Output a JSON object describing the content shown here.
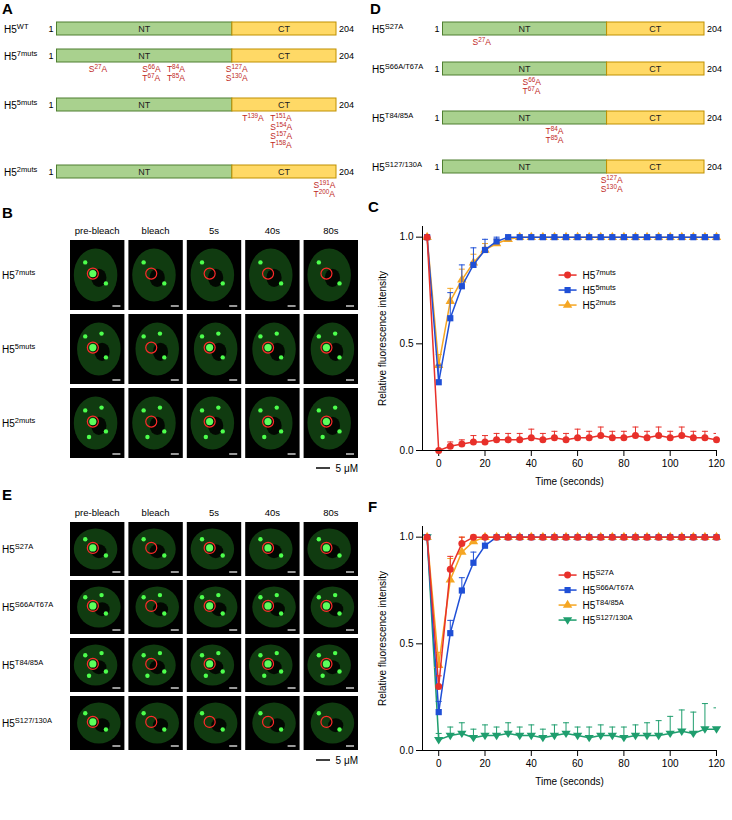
{
  "panels": {
    "A": {
      "label": "A",
      "start": 1,
      "end": 204,
      "domains": [
        {
          "name": "NT",
          "start": 1,
          "end": 128
        },
        {
          "name": "CT",
          "start": 129,
          "end": 204
        }
      ],
      "constructs": [
        {
          "name": "H5",
          "sup": "WT",
          "mutations": []
        },
        {
          "name": "H5",
          "sup": "7muts",
          "mutations": [
            [
              "S27A"
            ],
            [
              "S66A",
              "T67A"
            ],
            [
              "T84A",
              "T85A"
            ],
            [
              "S127A",
              "S130A"
            ]
          ]
        },
        {
          "name": "H5",
          "sup": "5muts",
          "mutations": [
            [
              "T139A"
            ],
            [
              "T151A",
              "S154A",
              "S157A",
              "T158A"
            ]
          ]
        },
        {
          "name": "H5",
          "sup": "2muts",
          "mutations": [
            [
              "S191A",
              "T200A"
            ]
          ]
        }
      ]
    },
    "D": {
      "label": "D",
      "start": 1,
      "end": 204,
      "domains": [
        {
          "name": "NT",
          "start": 1,
          "end": 128
        },
        {
          "name": "CT",
          "start": 129,
          "end": 204
        }
      ],
      "constructs": [
        {
          "name": "H5",
          "sup": "S27A",
          "mutations": [
            [
              "S27A"
            ]
          ]
        },
        {
          "name": "H5",
          "sup": "S66A/T67A",
          "mutations": [
            [
              "S66A",
              "T67A"
            ]
          ]
        },
        {
          "name": "H5",
          "sup": "T84/85A",
          "mutations": [
            [
              "T84A",
              "T85A"
            ]
          ]
        },
        {
          "name": "H5",
          "sup": "S127/130A",
          "mutations": [
            [
              "S127A",
              "S130A"
            ]
          ]
        }
      ]
    },
    "B": {
      "label": "B",
      "columns": [
        "pre-bleach",
        "bleach",
        "5s",
        "40s",
        "80s"
      ],
      "rows": [
        {
          "name": "H5",
          "sup": "7muts"
        },
        {
          "name": "H5",
          "sup": "5muts"
        },
        {
          "name": "H5",
          "sup": "2muts"
        }
      ],
      "scale_bar": "5 μM"
    },
    "E": {
      "label": "E",
      "columns": [
        "pre-bleach",
        "bleach",
        "5s",
        "40s",
        "80s"
      ],
      "rows": [
        {
          "name": "H5",
          "sup": "S27A"
        },
        {
          "name": "H5",
          "sup": "S66A/T67A"
        },
        {
          "name": "H5",
          "sup": "T84/85A"
        },
        {
          "name": "H5",
          "sup": "S127/130A"
        }
      ],
      "scale_bar": "5 μM"
    }
  },
  "chart_data": [
    {
      "panel": "C",
      "type": "line",
      "x_label": "Time (seconds)",
      "y_label": "Relative fluorescence intensity",
      "xlim": [
        -7,
        120
      ],
      "xticks": [
        0,
        20,
        40,
        60,
        80,
        100,
        120
      ],
      "ylim": [
        0,
        1.05
      ],
      "yticks": [
        {
          "value": 0,
          "label": "0.0"
        },
        {
          "value": 0.5,
          "label": "0.5"
        },
        {
          "value": 1,
          "label": "1.0"
        }
      ],
      "legend": "right",
      "x": [
        -5,
        0,
        5,
        10,
        15,
        20,
        25,
        30,
        35,
        40,
        45,
        50,
        55,
        60,
        65,
        70,
        75,
        80,
        85,
        90,
        95,
        100,
        105,
        110,
        115,
        120
      ],
      "series": [
        {
          "name": "H5",
          "sup": "7muts",
          "color": "#e8302a",
          "marker": "circle",
          "values": [
            1,
            0,
            0.02,
            0.03,
            0.04,
            0.04,
            0.05,
            0.05,
            0.05,
            0.06,
            0.05,
            0.06,
            0.05,
            0.06,
            0.06,
            0.07,
            0.06,
            0.06,
            0.07,
            0.06,
            0.07,
            0.06,
            0.07,
            0.06,
            0.06,
            0.05
          ],
          "errors": [
            0,
            0,
            0.02,
            0.02,
            0.03,
            0.03,
            0.03,
            0.03,
            0.03,
            0.04,
            0.03,
            0.03,
            0.03,
            0.04,
            0.03,
            0.04,
            0.03,
            0.03,
            0.04,
            0.03,
            0.04,
            0.03,
            0.04,
            0.03,
            0.03,
            0.03
          ]
        },
        {
          "name": "H5",
          "sup": "5muts",
          "color": "#1f4fd6",
          "marker": "square",
          "values": [
            1,
            0.32,
            0.62,
            0.77,
            0.87,
            0.94,
            0.98,
            1,
            1,
            1,
            1,
            1,
            1,
            1,
            1,
            1,
            1,
            1,
            1,
            1,
            1,
            1,
            1,
            1,
            1,
            1
          ],
          "errors": [
            0,
            0.08,
            0.12,
            0.1,
            0.08,
            0.05,
            0.02,
            0,
            0,
            0,
            0,
            0,
            0,
            0,
            0,
            0,
            0,
            0,
            0,
            0,
            0,
            0,
            0,
            0,
            0,
            0
          ]
        },
        {
          "name": "H5",
          "sup": "2muts",
          "color": "#f5a623",
          "marker": "triangle",
          "values": [
            1,
            0.4,
            0.7,
            0.8,
            0.88,
            0.94,
            0.97,
            0.99,
            1,
            1,
            1,
            1,
            1,
            1,
            1,
            1,
            1,
            1,
            1,
            1,
            1,
            1,
            1,
            1,
            1,
            1
          ],
          "errors": [
            0,
            0.05,
            0.06,
            0.05,
            0.04,
            0.03,
            0.02,
            0.01,
            0,
            0,
            0,
            0,
            0,
            0,
            0,
            0,
            0,
            0,
            0,
            0,
            0,
            0,
            0,
            0,
            0,
            0
          ]
        }
      ]
    },
    {
      "panel": "F",
      "type": "line",
      "x_label": "Time (seconds)",
      "y_label": "Relative fluorescence intensity",
      "xlim": [
        -7,
        120
      ],
      "xticks": [
        0,
        20,
        40,
        60,
        80,
        100,
        120
      ],
      "ylim": [
        0,
        1.05
      ],
      "yticks": [
        {
          "value": 0,
          "label": "0.0"
        },
        {
          "value": 0.5,
          "label": "0.5"
        },
        {
          "value": 1,
          "label": "1.0"
        }
      ],
      "legend": "right",
      "x": [
        -5,
        0,
        5,
        10,
        15,
        20,
        25,
        30,
        35,
        40,
        45,
        50,
        55,
        60,
        65,
        70,
        75,
        80,
        85,
        90,
        95,
        100,
        105,
        110,
        115,
        120
      ],
      "series": [
        {
          "name": "H5",
          "sup": "S27A",
          "color": "#e8302a",
          "marker": "circle",
          "values": [
            1,
            0.3,
            0.85,
            0.97,
            1,
            1,
            1,
            1,
            1,
            1,
            1,
            1,
            1,
            1,
            1,
            1,
            1,
            1,
            1,
            1,
            1,
            1,
            1,
            1,
            1,
            1
          ],
          "errors": [
            0,
            0.05,
            0.06,
            0.03,
            0,
            0,
            0,
            0,
            0,
            0,
            0,
            0,
            0,
            0,
            0,
            0,
            0,
            0,
            0,
            0,
            0,
            0,
            0,
            0,
            0,
            0
          ]
        },
        {
          "name": "H5",
          "sup": "S66A/T67A",
          "color": "#1f4fd6",
          "marker": "square",
          "values": [
            1,
            0.18,
            0.55,
            0.75,
            0.88,
            0.96,
            1,
            1,
            1,
            1,
            1,
            1,
            1,
            1,
            1,
            1,
            1,
            1,
            1,
            1,
            1,
            1,
            1,
            1,
            1,
            1
          ],
          "errors": [
            0,
            0.05,
            0.06,
            0.06,
            0.05,
            0.03,
            0,
            0,
            0,
            0,
            0,
            0,
            0,
            0,
            0,
            0,
            0,
            0,
            0,
            0,
            0,
            0,
            0,
            0,
            0,
            0
          ]
        },
        {
          "name": "H5",
          "sup": "T84/85A",
          "color": "#f5a623",
          "marker": "triangle",
          "values": [
            1,
            0.4,
            0.8,
            0.93,
            0.98,
            1,
            1,
            1,
            1,
            1,
            1,
            1,
            1,
            1,
            1,
            1,
            1,
            1,
            1,
            1,
            1,
            1,
            1,
            1,
            1,
            1
          ],
          "errors": [
            0,
            0.06,
            0.1,
            0.07,
            0.03,
            0,
            0,
            0,
            0,
            0,
            0,
            0,
            0,
            0,
            0,
            0,
            0,
            0,
            0,
            0,
            0,
            0,
            0,
            0,
            0,
            0
          ]
        },
        {
          "name": "H5",
          "sup": "S127/130A",
          "color": "#1f9e6e",
          "marker": "triangle-down",
          "values": [
            1,
            0.05,
            0.07,
            0.08,
            0.06,
            0.07,
            0.07,
            0.08,
            0.07,
            0.07,
            0.06,
            0.07,
            0.08,
            0.07,
            0.06,
            0.07,
            0.07,
            0.06,
            0.07,
            0.07,
            0.07,
            0.08,
            0.09,
            0.08,
            0.1,
            0.1
          ],
          "errors": [
            0,
            0.03,
            0.04,
            0.05,
            0.04,
            0.05,
            0.04,
            0.05,
            0.04,
            0.05,
            0.04,
            0.05,
            0.05,
            0.04,
            0.05,
            0.05,
            0.04,
            0.05,
            0.05,
            0.06,
            0.07,
            0.08,
            0.1,
            0.1,
            0.12,
            0.1
          ]
        }
      ]
    }
  ]
}
